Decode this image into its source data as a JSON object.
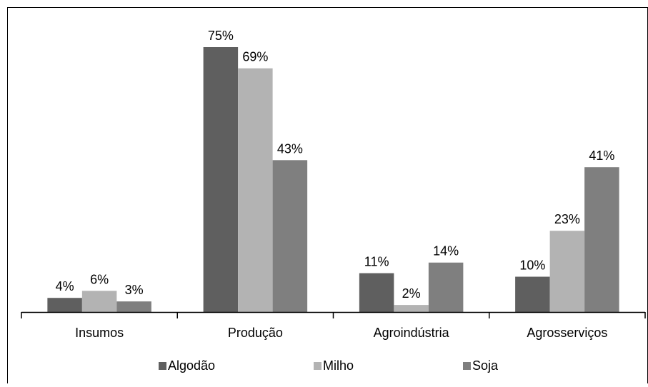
{
  "chart_data": {
    "type": "bar",
    "title": "",
    "xlabel": "",
    "ylabel": "",
    "ylim": [
      0,
      80
    ],
    "grid": false,
    "legend_position": "bottom",
    "categories": [
      "Insumos",
      "Produção",
      "Agroindústria",
      "Agrosserviços"
    ],
    "series": [
      {
        "name": "Algodão",
        "values": [
          4,
          75,
          11,
          10
        ],
        "labels": [
          "4%",
          "75%",
          "11%",
          "10%"
        ],
        "color": "#5f5f5f"
      },
      {
        "name": "Milho",
        "values": [
          6,
          69,
          2,
          23
        ],
        "labels": [
          "6%",
          "69%",
          "2%",
          "23%"
        ],
        "color": "#b3b3b3"
      },
      {
        "name": "Soja",
        "values": [
          3,
          43,
          14,
          41
        ],
        "labels": [
          "3%",
          "43%",
          "14%",
          "41%"
        ],
        "color": "#7f7f7f"
      }
    ]
  }
}
